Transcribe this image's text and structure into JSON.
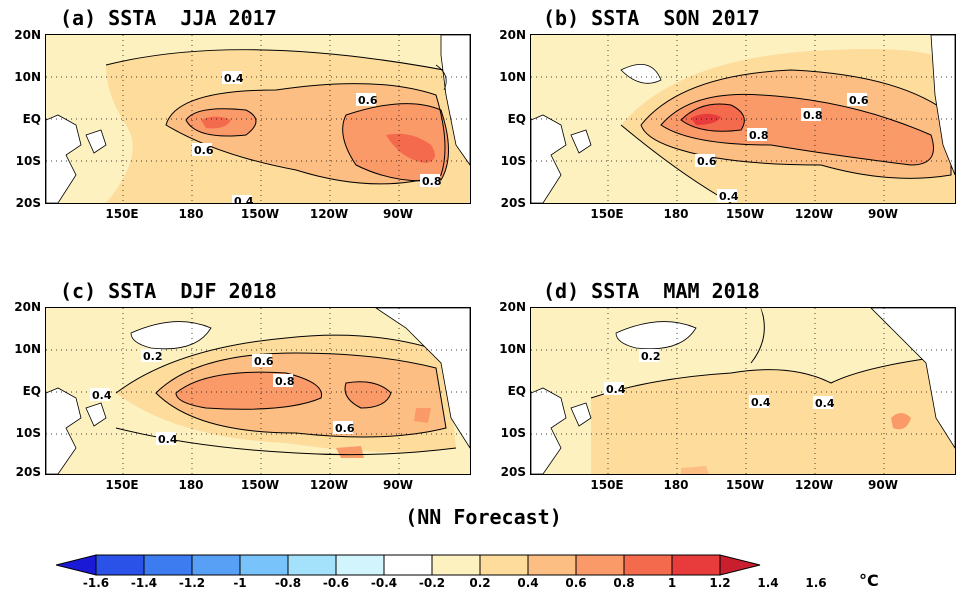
{
  "panels": [
    {
      "id": "a",
      "title": "(a) SSTA  JJA 2017",
      "labels": [
        "0.4",
        "0.6",
        "0.6",
        "0.8",
        "0.4"
      ]
    },
    {
      "id": "b",
      "title": "(b) SSTA  SON 2017",
      "labels": [
        "0.6",
        "0.8",
        "0.8",
        "0.6",
        "0.4"
      ]
    },
    {
      "id": "c",
      "title": "(c) SSTA  DJF 2018",
      "labels": [
        "0.2",
        "0.6",
        "0.8",
        "0.4",
        "0.4",
        "0.6"
      ]
    },
    {
      "id": "d",
      "title": "(d) SSTA  MAM 2018",
      "labels": [
        "0.2",
        "0.4",
        "0.4",
        "0.4"
      ]
    }
  ],
  "lat_ticks": [
    "20N",
    "10N",
    "EQ",
    "10S",
    "20S"
  ],
  "lon_ticks": [
    "150E",
    "180",
    "150W",
    "120W",
    "90W"
  ],
  "footer": "(NN Forecast)",
  "colorbar": {
    "ticks": [
      "-1.6",
      "-1.4",
      "-1.2",
      "-1",
      "-0.8",
      "-0.6",
      "-0.4",
      "-0.2",
      "0.2",
      "0.4",
      "0.6",
      "0.8",
      "1",
      "1.2",
      "1.4",
      "1.6"
    ],
    "unit": "°C",
    "colors": [
      "#1a1ad6",
      "#2a52e8",
      "#3c7cf0",
      "#57a0f5",
      "#78c4fa",
      "#a4e2fc",
      "#d2f4fd",
      "#ffffff",
      "#fdf1c0",
      "#fddc9c",
      "#fcbe82",
      "#f99a68",
      "#f46a4c",
      "#e83b3b",
      "#c81e2e"
    ]
  },
  "colors": {
    "land": "#ffffff",
    "sst_02": "#fdf1c0",
    "sst_04": "#fddc9c",
    "sst_06": "#fcbe82",
    "sst_08": "#f99a68",
    "sst_10": "#f46a4c"
  }
}
